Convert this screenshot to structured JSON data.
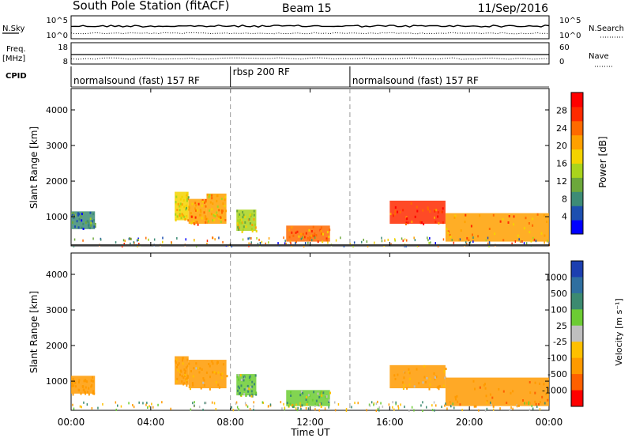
{
  "header": {
    "station": "South Pole Station (fitACF)",
    "beam": "Beam 15",
    "date": "11/Sep/2016"
  },
  "noise_panel": {
    "left_label": "N.Sky",
    "right_label": "N.Search",
    "left_ticks": [
      "10^5",
      "10^0"
    ],
    "right_ticks": [
      "10^5",
      "10^0"
    ]
  },
  "freq_panel": {
    "left_label_line1": "Freq.",
    "left_label_line2": "[MHz]",
    "right_label": "Nave",
    "left_ticks": [
      "18",
      "8"
    ],
    "right_ticks": [
      "60",
      "0"
    ]
  },
  "cpid": {
    "label": "CPID",
    "segments": [
      {
        "name": "normalsound (fast) 157 RF",
        "start_hour": 0,
        "end_hour": 8
      },
      {
        "name": "rbsp 200 RF",
        "start_hour": 8,
        "end_hour": 14
      },
      {
        "name": "normalsound (fast) 157 RF",
        "start_hour": 14,
        "end_hour": 24
      }
    ]
  },
  "colors": {
    "power_scale": [
      "#0000ff",
      "#1d4fb0",
      "#3d8c76",
      "#6ca83b",
      "#a9d41c",
      "#f4d300",
      "#ffa000",
      "#ff6a00",
      "#ff2a00",
      "#ff0000"
    ],
    "velocity_scale": [
      "#1c3fb0",
      "#2f6fa0",
      "#3c8a70",
      "#6ccc33",
      "#bfbfbf",
      "#ffc000",
      "#ff9a00",
      "#ff6000",
      "#ff0000"
    ]
  },
  "chart_data": [
    {
      "type": "heatmap",
      "title": "Power",
      "xlabel": "Time UT",
      "ylabel": "Slant Range [km]",
      "xlim_hours": [
        0,
        24
      ],
      "ylim_km": [
        180,
        4600
      ],
      "x_ticks": [
        "00:00",
        "04:00",
        "08:00",
        "12:00",
        "16:00",
        "20:00",
        "00:00"
      ],
      "y_ticks": [
        "1000",
        "2000",
        "3000",
        "4000"
      ],
      "colorbar": {
        "label": "Power [dB]",
        "ticks": [
          "4",
          "8",
          "12",
          "16",
          "20",
          "24",
          "28"
        ]
      },
      "regions": [
        {
          "t0": 0.0,
          "t1": 1.2,
          "r0": 650,
          "r1": 1150,
          "power": 7
        },
        {
          "t0": 5.2,
          "t1": 5.9,
          "r0": 900,
          "r1": 1700,
          "power": 18
        },
        {
          "t0": 5.9,
          "t1": 6.8,
          "r0": 800,
          "r1": 1500,
          "power": 22
        },
        {
          "t0": 6.8,
          "t1": 7.8,
          "r0": 800,
          "r1": 1650,
          "power": 20
        },
        {
          "t0": 8.3,
          "t1": 9.3,
          "r0": 600,
          "r1": 1200,
          "power": 15
        },
        {
          "t0": 10.8,
          "t1": 13.0,
          "r0": 300,
          "r1": 750,
          "power": 24
        },
        {
          "t0": 16.0,
          "t1": 18.8,
          "r0": 800,
          "r1": 1450,
          "power": 28
        },
        {
          "t0": 18.8,
          "t1": 24.0,
          "r0": 300,
          "r1": 1100,
          "power": 22
        }
      ]
    },
    {
      "type": "heatmap",
      "title": "Velocity",
      "xlabel": "Time UT",
      "ylabel": "Slant Range [km]",
      "xlim_hours": [
        0,
        24
      ],
      "ylim_km": [
        180,
        4600
      ],
      "x_ticks": [
        "00:00",
        "04:00",
        "08:00",
        "12:00",
        "16:00",
        "20:00",
        "00:00"
      ],
      "y_ticks": [
        "1000",
        "2000",
        "3000",
        "4000"
      ],
      "colorbar": {
        "label": "Velocity [m s⁻¹]",
        "ticks": [
          "1000",
          "500",
          "100",
          "25",
          "-25",
          "-100",
          "-500",
          "-1000"
        ]
      },
      "regions": [
        {
          "t0": 0.0,
          "t1": 1.2,
          "r0": 650,
          "r1": 1150,
          "velocity": -300
        },
        {
          "t0": 5.2,
          "t1": 5.9,
          "r0": 900,
          "r1": 1700,
          "velocity": -200
        },
        {
          "t0": 5.9,
          "t1": 7.8,
          "r0": 800,
          "r1": 1600,
          "velocity": -150
        },
        {
          "t0": 8.3,
          "t1": 9.3,
          "r0": 600,
          "r1": 1200,
          "velocity": 80
        },
        {
          "t0": 10.8,
          "t1": 13.0,
          "r0": 300,
          "r1": 750,
          "velocity": 60
        },
        {
          "t0": 16.0,
          "t1": 18.8,
          "r0": 800,
          "r1": 1450,
          "velocity": -150
        },
        {
          "t0": 18.8,
          "t1": 24.0,
          "r0": 300,
          "r1": 1100,
          "velocity": -400
        }
      ]
    }
  ]
}
